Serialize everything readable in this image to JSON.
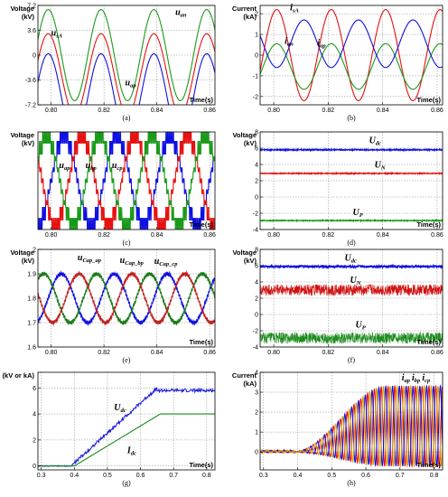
{
  "chart_data": [
    {
      "id": "a",
      "type": "line",
      "caption": "(a)",
      "ylabel": [
        "Voltage",
        "(kV)"
      ],
      "xlabel": "Time(s)",
      "xlim": [
        0.795,
        0.862
      ],
      "ylim": [
        -7.2,
        7.2
      ],
      "xticks": [
        "0.80",
        "0.82",
        "0.84",
        "0.86"
      ],
      "xtick_values": [
        0.8,
        0.82,
        0.84,
        0.86
      ],
      "yticks": [
        "7.2",
        "3.6",
        "0",
        "-3.6",
        "-7.2"
      ],
      "ytick_values": [
        7.2,
        3.6,
        0,
        -3.6,
        -7.2
      ],
      "grid": true,
      "series": [
        {
          "name": "u_an",
          "color": "#1a9a1a",
          "kind": "sine",
          "amplitude": 6.6,
          "offset": 0,
          "frequency": 50,
          "phase_deg": 110
        },
        {
          "name": "u_sA",
          "color": "#e81010",
          "kind": "sine",
          "amplitude": 5.9,
          "offset": -2.8,
          "frequency": 50,
          "phase_deg": 110
        },
        {
          "name": "u_ap",
          "color": "#1010e0",
          "kind": "sine",
          "amplitude": 6.3,
          "offset": -6.1,
          "frequency": 50,
          "phase_deg": 110
        }
      ],
      "annotations": [
        {
          "text": "u",
          "sub": "an",
          "x": 0.847,
          "y": 5.8
        },
        {
          "text": "u",
          "sub": "sA",
          "x": 0.8,
          "y": 2.8
        },
        {
          "text": "u",
          "sub": "ap",
          "x": 0.828,
          "y": -4.4
        }
      ]
    },
    {
      "id": "b",
      "type": "line",
      "caption": "(b)",
      "ylabel": [
        "Current",
        "(kA)"
      ],
      "xlabel": "Time(s)",
      "xlim": [
        0.795,
        0.862
      ],
      "ylim": [
        -2.4,
        2.4
      ],
      "xticks": [
        "0.80",
        "0.82",
        "0.84",
        "0.86"
      ],
      "xtick_values": [
        0.8,
        0.82,
        0.84,
        0.86
      ],
      "yticks": [
        "2",
        "1",
        "0",
        "-1",
        "-2"
      ],
      "ytick_values": [
        2,
        1,
        0,
        -1,
        -2
      ],
      "grid": true,
      "series": [
        {
          "name": "i_sA",
          "color": "#e81010",
          "kind": "sine",
          "amplitude": 2.2,
          "offset": 0,
          "frequency": 50,
          "phase_deg": 70
        },
        {
          "name": "i_an",
          "color": "#1a9a1a",
          "kind": "sine",
          "amplitude": 1.1,
          "offset": -0.55,
          "frequency": 50,
          "phase_deg": 70
        },
        {
          "name": "i_ap",
          "color": "#1010e0",
          "kind": "sine",
          "amplitude": 1.15,
          "offset": 0.55,
          "frequency": 50,
          "phase_deg": 250
        }
      ],
      "annotations": [
        {
          "text": "i",
          "sub": "sA",
          "x": 0.806,
          "y": 2.15
        },
        {
          "text": "i",
          "sub": "an",
          "x": 0.804,
          "y": 0.55
        },
        {
          "text": "i",
          "sub": "ap",
          "x": 0.816,
          "y": 0.45
        }
      ]
    },
    {
      "id": "c",
      "type": "line",
      "caption": "(c)",
      "ylabel": [
        "Voltage",
        "(kV)"
      ],
      "xlabel": "Time(s)",
      "xlim": [
        0.795,
        0.862
      ],
      "ylim": [
        -7,
        7
      ],
      "xticks": [
        "0.80",
        "0.82",
        "0.84",
        "0.86"
      ],
      "xtick_values": [
        0.8,
        0.82,
        0.84,
        0.86
      ],
      "yticks": [],
      "ytick_values": [],
      "grid": true,
      "series": [
        {
          "name": "u_ap",
          "color": "#1010e0",
          "kind": "staircase",
          "amplitude": 6.3,
          "offset": 0,
          "frequency": 50,
          "phase_deg": 0
        },
        {
          "name": "u_bp",
          "color": "#e81010",
          "kind": "staircase",
          "amplitude": 6.3,
          "offset": 0,
          "frequency": 50,
          "phase_deg": -120
        },
        {
          "name": "u_cp",
          "color": "#1a9a1a",
          "kind": "staircase",
          "amplitude": 6.3,
          "offset": 0,
          "frequency": 50,
          "phase_deg": 120
        }
      ],
      "annotations": [
        {
          "text": "u",
          "sub": "ap",
          "x": 0.803,
          "y": 1.8
        },
        {
          "text": "u",
          "sub": "bp",
          "x": 0.813,
          "y": 1.8
        },
        {
          "text": "u",
          "sub": "cp",
          "x": 0.823,
          "y": 1.8
        }
      ]
    },
    {
      "id": "d",
      "type": "line",
      "caption": "(d)",
      "ylabel": [
        "Voltage",
        "(kV)"
      ],
      "xlabel": "Time(s)",
      "xlim": [
        0.795,
        0.862
      ],
      "ylim": [
        -4,
        8
      ],
      "xticks": [
        "0.80",
        "0.82",
        "0.84",
        "0.86"
      ],
      "xtick_values": [
        0.8,
        0.82,
        0.84,
        0.86
      ],
      "yticks": [
        "8",
        "6",
        "4",
        "2",
        "0",
        "-2",
        "-4"
      ],
      "ytick_values": [
        8,
        6,
        4,
        2,
        0,
        -2,
        -4
      ],
      "grid": true,
      "series": [
        {
          "name": "U_dc",
          "color": "#1010e0",
          "kind": "flat",
          "value": 5.8,
          "noise": 0.06
        },
        {
          "name": "U_N",
          "color": "#e81010",
          "kind": "flat",
          "value": 2.9,
          "noise": 0.05
        },
        {
          "name": "U_P",
          "color": "#1a9a1a",
          "kind": "flat",
          "value": -2.9,
          "noise": 0.05
        }
      ],
      "annotations": [
        {
          "text": "U",
          "sub": "dc",
          "x": 0.835,
          "y": 6.6
        },
        {
          "text": "U",
          "sub": "N",
          "x": 0.837,
          "y": 3.6
        },
        {
          "text": "U",
          "sub": "P",
          "x": 0.829,
          "y": -2.2
        }
      ]
    },
    {
      "id": "e",
      "type": "line",
      "caption": "(e)",
      "ylabel": [
        "Voltage",
        "(kV)"
      ],
      "xlabel": "Time(s)",
      "xlim": [
        0.795,
        0.862
      ],
      "ylim": [
        1.6,
        2.0
      ],
      "xticks": [
        "0.80",
        "0.82",
        "0.84",
        "0.86"
      ],
      "xtick_values": [
        0.8,
        0.82,
        0.84,
        0.86
      ],
      "yticks": [
        "2",
        "1.9",
        "1.8",
        "1.7",
        "1.6"
      ],
      "ytick_values": [
        2.0,
        1.9,
        1.8,
        1.7,
        1.6
      ],
      "grid": true,
      "series": [
        {
          "name": "u_Cap_ap",
          "color": "#1010e0",
          "kind": "sine",
          "amplitude": 0.1,
          "offset": 1.8,
          "frequency": 50,
          "phase_deg": 20,
          "ripple": 0.006
        },
        {
          "name": "u_Cap_bp",
          "color": "#1a7a1a",
          "kind": "sine",
          "amplitude": 0.1,
          "offset": 1.8,
          "frequency": 50,
          "phase_deg": 140,
          "ripple": 0.006
        },
        {
          "name": "u_Cap_cp",
          "color": "#c02020",
          "kind": "sine",
          "amplitude": 0.1,
          "offset": 1.8,
          "frequency": 50,
          "phase_deg": 260,
          "ripple": 0.006
        }
      ],
      "annotations": [
        {
          "text": "u",
          "sub": "Cap_ap",
          "x": 0.81,
          "y": 1.955
        },
        {
          "text": "u",
          "sub": "Cap_bp",
          "x": 0.826,
          "y": 1.945
        },
        {
          "text": "u",
          "sub": "Cap_cp",
          "x": 0.839,
          "y": 1.94
        }
      ]
    },
    {
      "id": "f",
      "type": "line",
      "caption": "(f)",
      "ylabel": [
        "Voltage",
        "(kV)"
      ],
      "xlabel": "Time(s)",
      "xlim": [
        0.795,
        0.862
      ],
      "ylim": [
        -4,
        8
      ],
      "xticks": [
        "0.80",
        "0.82",
        "0.84",
        "0.86"
      ],
      "xtick_values": [
        0.8,
        0.82,
        0.84,
        0.86
      ],
      "yticks": [
        "8",
        "6",
        "4",
        "2",
        "0",
        "-2",
        "-4"
      ],
      "ytick_values": [
        8,
        6,
        4,
        2,
        0,
        -2,
        -4
      ],
      "grid": true,
      "series": [
        {
          "name": "U_dc",
          "color": "#1010e0",
          "kind": "flat",
          "value": 5.9,
          "noise": 0.15
        },
        {
          "name": "U_N",
          "color": "#d01010",
          "kind": "flat",
          "value": 3.0,
          "noise": 0.7
        },
        {
          "name": "U_P",
          "color": "#1a8a1a",
          "kind": "flat",
          "value": -2.9,
          "noise": 0.7
        }
      ],
      "annotations": [
        {
          "text": "U",
          "sub": "dc",
          "x": 0.826,
          "y": 6.6
        },
        {
          "text": "U",
          "sub": "N",
          "x": 0.828,
          "y": 3.9
        },
        {
          "text": "U",
          "sub": "P",
          "x": 0.83,
          "y": -1.6
        }
      ]
    },
    {
      "id": "g",
      "type": "line",
      "caption": "(g)",
      "ylabel": [
        "(kV or kA)"
      ],
      "xlabel": "Time(s)",
      "xlim": [
        0.29,
        0.825
      ],
      "ylim": [
        -0.3,
        7.2
      ],
      "xticks": [
        "0.3",
        "0.4",
        "0.5",
        "0.6",
        "0.7",
        "0.8"
      ],
      "xtick_values": [
        0.3,
        0.4,
        0.5,
        0.6,
        0.7,
        0.8
      ],
      "yticks": [
        "6",
        "4",
        "2",
        "0"
      ],
      "ytick_values": [
        6,
        4,
        2,
        0
      ],
      "grid": true,
      "series": [
        {
          "name": "U_dc",
          "color": "#1a1ae0",
          "kind": "ramp",
          "start_x": 0.39,
          "end_x": 0.65,
          "start_y": 0,
          "end_y": 6.0,
          "final_y": 5.8,
          "noise": 0.12
        },
        {
          "name": "I_dc",
          "color": "#1a8a1a",
          "kind": "ramp",
          "start_x": 0.4,
          "end_x": 0.66,
          "start_y": 0,
          "end_y": 4.0,
          "final_y": 4.0,
          "noise": 0
        }
      ],
      "annotations": [
        {
          "text": "U",
          "sub": "dc",
          "x": 0.52,
          "y": 4.3
        },
        {
          "text": "I",
          "sub": "dc",
          "x": 0.56,
          "y": 1.0
        }
      ]
    },
    {
      "id": "h",
      "type": "line",
      "caption": "(h)",
      "ylabel": [
        "Current",
        "(kA)"
      ],
      "xlabel": "Time(s)",
      "xlim": [
        0.29,
        0.825
      ],
      "ylim": [
        -0.9,
        4.0
      ],
      "xticks": [
        "0.3",
        "0.4",
        "0.5",
        "0.6",
        "0.7",
        "0.8"
      ],
      "xtick_values": [
        0.3,
        0.4,
        0.5,
        0.6,
        0.7,
        0.8
      ],
      "yticks": [
        "4",
        "3",
        "2",
        "1",
        "0"
      ],
      "ytick_values": [
        4,
        3,
        2,
        1,
        0
      ],
      "grid": true,
      "series": [
        {
          "name": "i_ap",
          "color": "#e81010",
          "kind": "envelope_sine",
          "start_x": 0.39,
          "end_x": 0.66,
          "final_upper": 3.3,
          "final_lower": -0.7,
          "frequency": 50,
          "phase_deg": 0
        },
        {
          "name": "i_bp",
          "color": "#1010e0",
          "kind": "envelope_sine",
          "start_x": 0.39,
          "end_x": 0.66,
          "final_upper": 3.3,
          "final_lower": -0.7,
          "frequency": 50,
          "phase_deg": 120
        },
        {
          "name": "i_cp",
          "color": "#d4a010",
          "kind": "envelope_sine",
          "start_x": 0.39,
          "end_x": 0.66,
          "final_upper": 3.3,
          "final_lower": -0.7,
          "frequency": 50,
          "phase_deg": 240
        }
      ],
      "annotations": [
        {
          "text": "i",
          "sub": "ap",
          "x": 0.705,
          "y": 3.6
        },
        {
          "text": "i",
          "sub": "bp",
          "x": 0.735,
          "y": 3.6
        },
        {
          "text": "i",
          "sub": "cp",
          "x": 0.765,
          "y": 3.6
        }
      ]
    }
  ]
}
